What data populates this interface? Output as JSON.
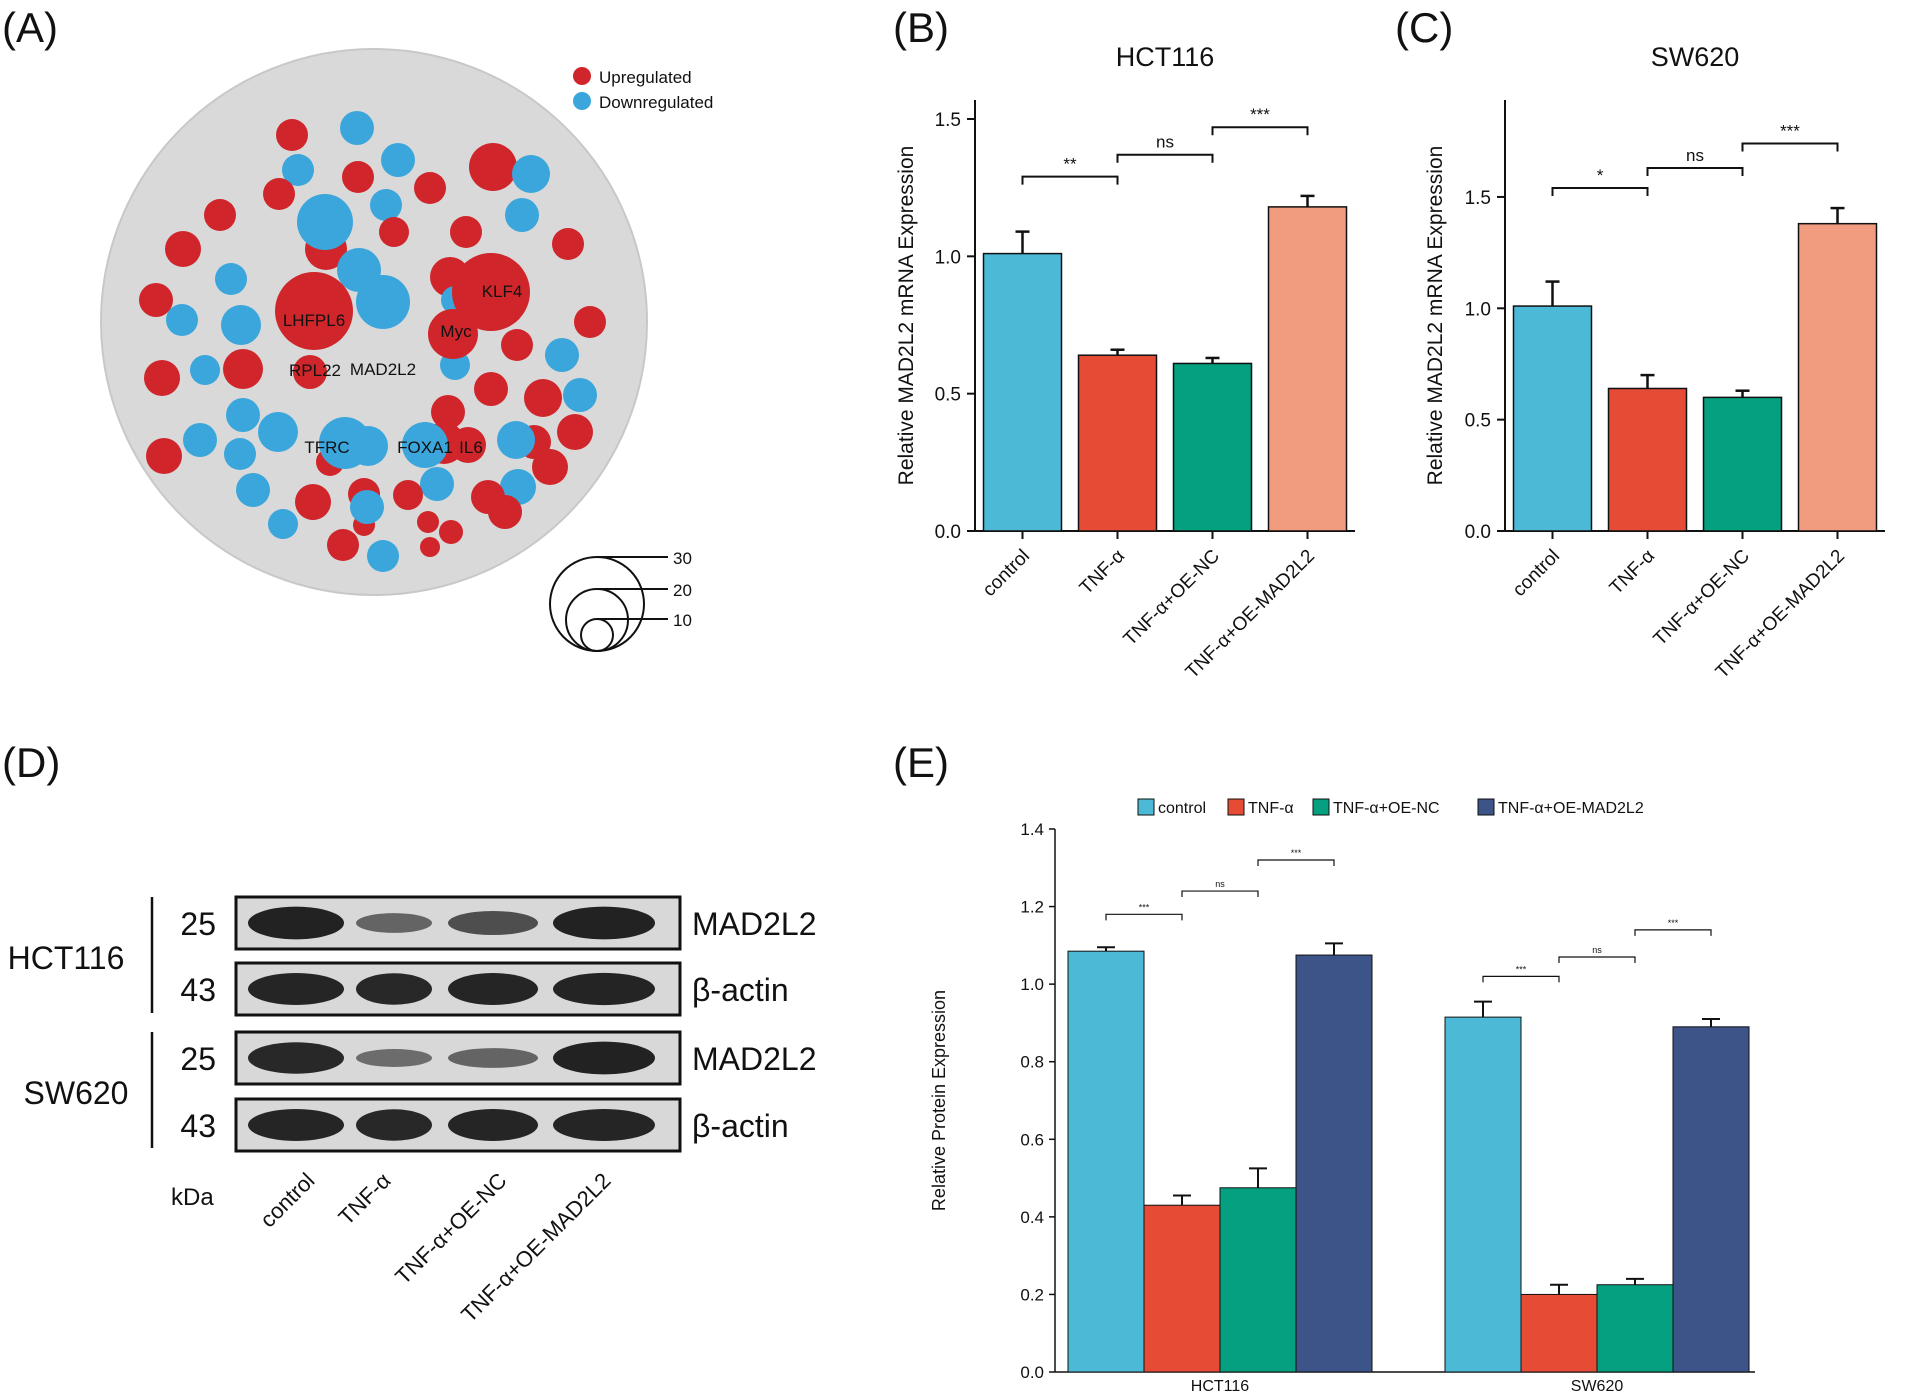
{
  "colors": {
    "up": "#d0262b",
    "down": "#3aa6dc",
    "network_bg": "#d9d9d9",
    "control": "#4cbad7",
    "tnf": "#e64b35",
    "oe_nc": "#04a080",
    "oe_mad2l2_b": "#f19c7f",
    "oe_mad2l2_e": "#3c5488",
    "blot_bg": "#d8d8d8",
    "band": "#1a1a1a"
  },
  "panels": {
    "a": {
      "letter": "(A)",
      "legend": [
        {
          "label": "Upregulated",
          "color_key": "up"
        },
        {
          "label": "Downregulated",
          "color_key": "down"
        }
      ],
      "genes": [
        {
          "label": "LHFPL6",
          "reg": "up"
        },
        {
          "label": "KLF4",
          "reg": "up"
        },
        {
          "label": "Myc",
          "reg": "up"
        },
        {
          "label": "MAD2L2",
          "reg": "down"
        },
        {
          "label": "RPL22",
          "reg": "up"
        },
        {
          "label": "TFRC",
          "reg": "down"
        },
        {
          "label": "FOXA1",
          "reg": "down"
        },
        {
          "label": "IL6",
          "reg": "up"
        }
      ],
      "size_legend": [
        "30",
        "20",
        "10"
      ]
    },
    "b": {
      "letter": "(B)"
    },
    "c": {
      "letter": "(C)"
    },
    "d": {
      "letter": "(D)",
      "cell_lines": [
        "HCT116",
        "SW620"
      ],
      "kda_header": "kDa",
      "rows": [
        {
          "kda": "25",
          "protein": "MAD2L2",
          "intensity": [
            0.95,
            0.45,
            0.62,
            0.95
          ]
        },
        {
          "kda": "43",
          "protein": "β-actin",
          "intensity": [
            0.92,
            0.9,
            0.92,
            0.93
          ]
        },
        {
          "kda": "25",
          "protein": "MAD2L2",
          "intensity": [
            0.9,
            0.38,
            0.45,
            0.95
          ]
        },
        {
          "kda": "43",
          "protein": "β-actin",
          "intensity": [
            0.92,
            0.9,
            0.92,
            0.92
          ]
        }
      ],
      "lanes": [
        "control",
        "TNF-α",
        "TNF-α+OE-NC",
        "TNF-α+OE-MAD2L2"
      ]
    },
    "e": {
      "letter": "(E)"
    }
  },
  "chart_data": [
    {
      "id": "B",
      "type": "bar",
      "title": "HCT116",
      "ylabel": "Relative MAD2L2 mRNA Expression",
      "categories": [
        "control",
        "TNF-α",
        "TNF-α+OE-NC",
        "TNF-α+OE-MAD2L2"
      ],
      "values": [
        1.01,
        0.64,
        0.61,
        1.18
      ],
      "errors": [
        0.08,
        0.02,
        0.02,
        0.04
      ],
      "ylim": [
        0,
        1.5
      ],
      "yticks": [
        "0.0",
        "0.5",
        "1.0",
        "1.5"
      ],
      "bar_color_keys": [
        "control",
        "tnf",
        "oe_nc",
        "oe_mad2l2_b"
      ],
      "significance": [
        {
          "from": 0,
          "to": 1,
          "label": "**",
          "y": 1.29
        },
        {
          "from": 1,
          "to": 2,
          "label": "ns",
          "y": 1.37
        },
        {
          "from": 2,
          "to": 3,
          "label": "***",
          "y": 1.47
        }
      ]
    },
    {
      "id": "C",
      "type": "bar",
      "title": "SW620",
      "ylabel": "Relative MAD2L2 mRNA Expression",
      "categories": [
        "control",
        "TNF-α",
        "TNF-α+OE-NC",
        "TNF-α+OE-MAD2L2"
      ],
      "values": [
        1.01,
        0.64,
        0.6,
        1.38
      ],
      "errors": [
        0.11,
        0.06,
        0.03,
        0.07
      ],
      "ylim": [
        0,
        1.85
      ],
      "yticks": [
        "0.0",
        "0.5",
        "1.0",
        "1.5"
      ],
      "bar_color_keys": [
        "control",
        "tnf",
        "oe_nc",
        "oe_mad2l2_b"
      ],
      "significance": [
        {
          "from": 0,
          "to": 1,
          "label": "*",
          "y": 1.54
        },
        {
          "from": 1,
          "to": 2,
          "label": "ns",
          "y": 1.63
        },
        {
          "from": 2,
          "to": 3,
          "label": "***",
          "y": 1.74
        }
      ]
    },
    {
      "id": "E",
      "type": "bar",
      "ylabel": "Relative Protein Expression",
      "categories": [
        "HCT116",
        "SW620"
      ],
      "series": [
        {
          "name": "control",
          "values": [
            1.085,
            0.915
          ],
          "errors": [
            0.01,
            0.04
          ],
          "color_key": "control"
        },
        {
          "name": "TNF-α",
          "values": [
            0.43,
            0.2
          ],
          "errors": [
            0.025,
            0.025
          ],
          "color_key": "tnf"
        },
        {
          "name": "TNF-α+OE-NC",
          "values": [
            0.475,
            0.225
          ],
          "errors": [
            0.05,
            0.015
          ],
          "color_key": "oe_nc"
        },
        {
          "name": "TNF-α+OE-MAD2L2",
          "values": [
            1.075,
            0.89
          ],
          "errors": [
            0.03,
            0.02
          ],
          "color_key": "oe_mad2l2_e"
        }
      ],
      "ylim": [
        0,
        1.4
      ],
      "yticks": [
        "0.0",
        "0.2",
        "0.4",
        "0.6",
        "0.8",
        "1.0",
        "1.2",
        "1.4"
      ],
      "legend_position": "top",
      "significance": [
        {
          "group": 0,
          "from": 0,
          "to": 1,
          "label": "***",
          "y": 1.18
        },
        {
          "group": 0,
          "from": 1,
          "to": 2,
          "label": "ns",
          "y": 1.24
        },
        {
          "group": 0,
          "from": 2,
          "to": 3,
          "label": "***",
          "y": 1.32
        },
        {
          "group": 1,
          "from": 0,
          "to": 1,
          "label": "***",
          "y": 1.02
        },
        {
          "group": 1,
          "from": 1,
          "to": 2,
          "label": "ns",
          "y": 1.07
        },
        {
          "group": 1,
          "from": 2,
          "to": 3,
          "label": "***",
          "y": 1.14
        }
      ]
    }
  ]
}
